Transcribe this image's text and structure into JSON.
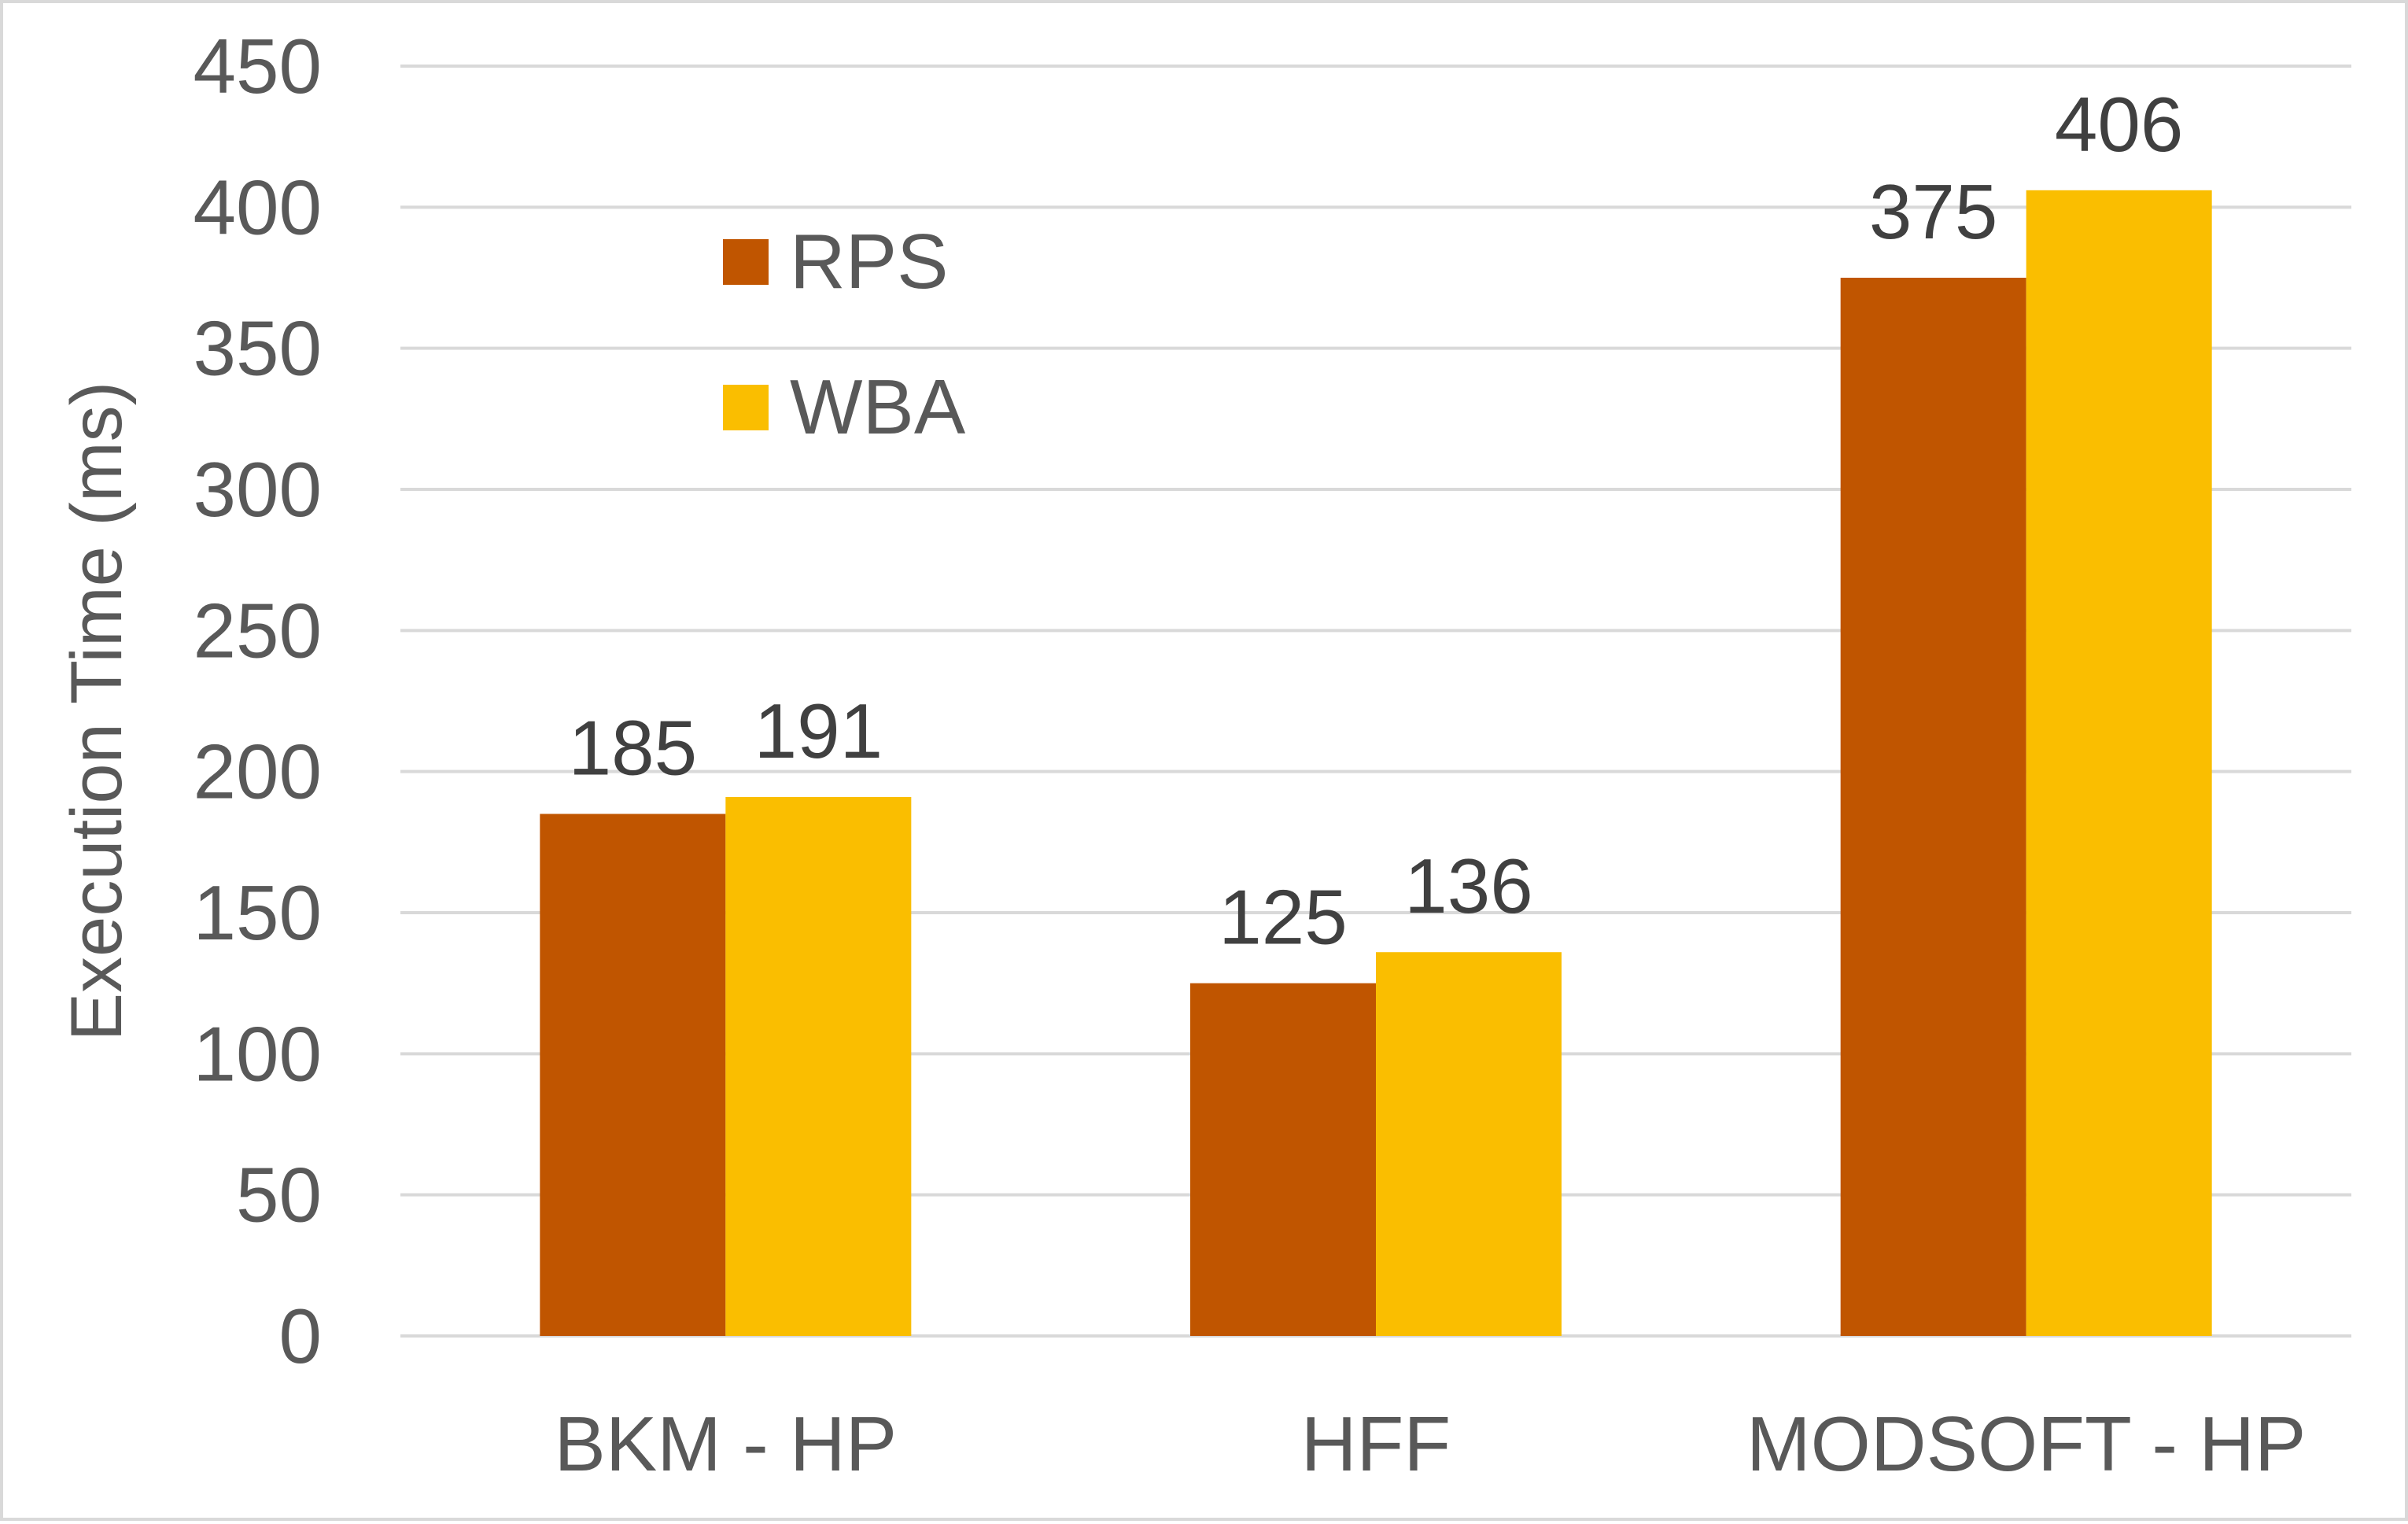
{
  "chart_data": {
    "type": "bar",
    "title": "",
    "xlabel": "",
    "ylabel": "Execution Time (ms)",
    "ylim": [
      0,
      450
    ],
    "yticks": [
      0,
      50,
      100,
      150,
      200,
      250,
      300,
      350,
      400,
      450
    ],
    "categories": [
      "BKM - HP",
      "HFF",
      "MODSOFT - HP"
    ],
    "series": [
      {
        "name": "RPS",
        "color": "#c05500",
        "values": [
          185,
          125,
          375
        ]
      },
      {
        "name": "WBA",
        "color": "#fabe00",
        "values": [
          191,
          136,
          406
        ]
      }
    ],
    "grid": true,
    "legend_position": "top-left"
  }
}
